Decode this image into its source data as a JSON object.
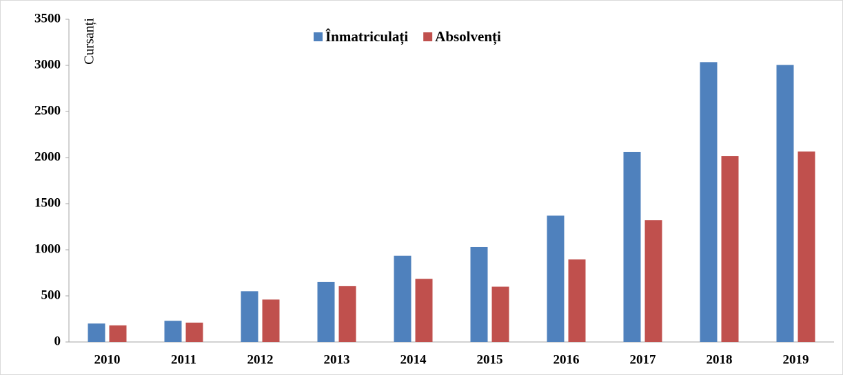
{
  "chart_data": {
    "type": "bar",
    "y_label": "Cursanți",
    "categories": [
      "2010",
      "2011",
      "2012",
      "2013",
      "2014",
      "2015",
      "2016",
      "2017",
      "2018",
      "2019"
    ],
    "series": [
      {
        "name": "Înmatriculați",
        "color": "#4f81bd",
        "values": [
          200,
          230,
          550,
          650,
          935,
          1030,
          1370,
          2060,
          3035,
          3005
        ]
      },
      {
        "name": "Absolvenți",
        "color": "#c0504d",
        "values": [
          180,
          210,
          460,
          605,
          685,
          600,
          895,
          1320,
          2015,
          2065
        ]
      }
    ],
    "ylim": [
      0,
      3500
    ],
    "yticks": [
      0,
      500,
      1000,
      1500,
      2000,
      2500,
      3000,
      3500
    ],
    "grid": false,
    "legend": "top"
  }
}
